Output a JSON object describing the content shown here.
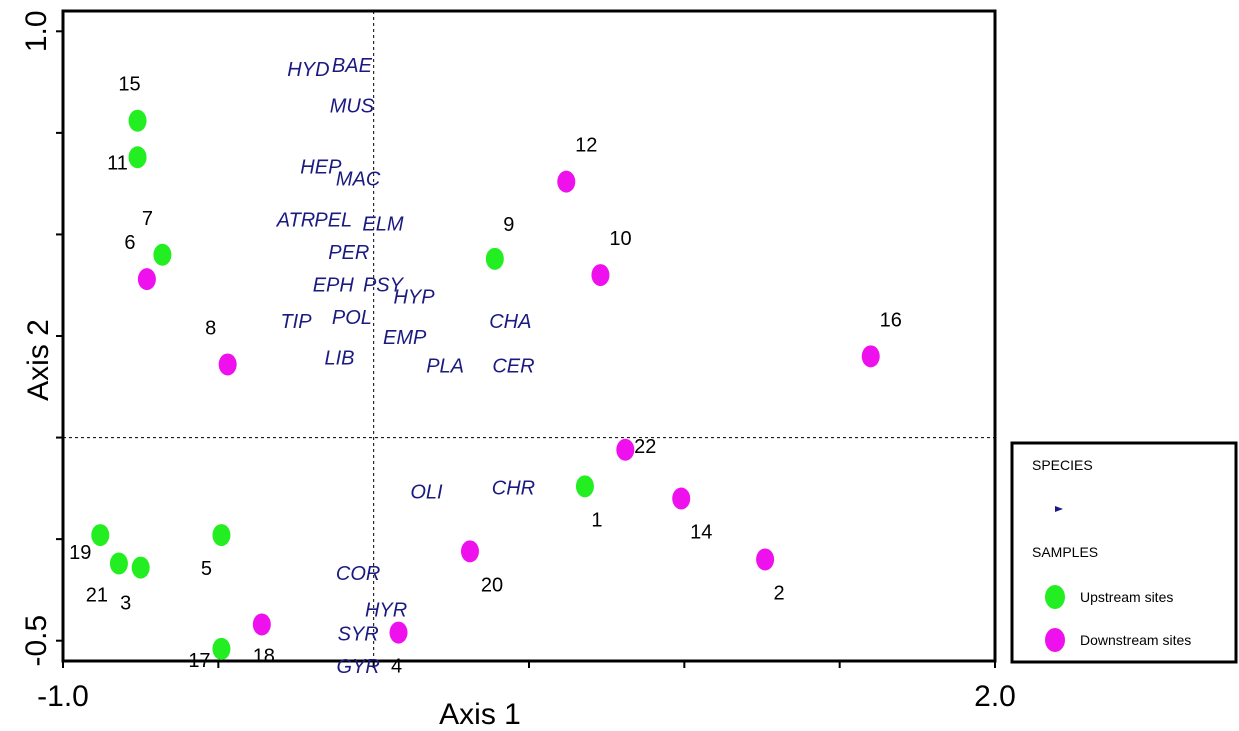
{
  "chart_data": {
    "type": "scatter",
    "xlabel": "Axis 1",
    "ylabel": "Axis 2",
    "xlim": [
      -1.0,
      2.0
    ],
    "ylim": [
      -0.55,
      1.05
    ],
    "x_ticks_labeled": [
      {
        "value": -1.0,
        "label": "-1.0"
      },
      {
        "value": 2.0,
        "label": "2.0"
      }
    ],
    "y_ticks_labeled": [
      {
        "value": 1.0,
        "label": "1.0"
      },
      {
        "value": -0.5,
        "label": "-0.5"
      }
    ],
    "x_ticks": [
      -1.0,
      -0.5,
      0.0,
      0.5,
      1.0,
      1.5,
      2.0
    ],
    "y_ticks": [
      1.0,
      0.75,
      0.5,
      0.25,
      0.0,
      -0.25,
      -0.5
    ],
    "reference_lines": {
      "x": 0.0,
      "y": 0.0
    },
    "colors": {
      "upstream": "#22ee22",
      "downstream": "#ee11ee",
      "species": "#1a1a80"
    },
    "species": [
      {
        "label": "HYD",
        "x": -0.21,
        "y": 0.89
      },
      {
        "label": "BAE",
        "x": -0.07,
        "y": 0.9
      },
      {
        "label": "MUS",
        "x": -0.07,
        "y": 0.8
      },
      {
        "label": "HEP",
        "x": -0.17,
        "y": 0.65
      },
      {
        "label": "MAC",
        "x": -0.05,
        "y": 0.62
      },
      {
        "label": "ATR",
        "x": -0.25,
        "y": 0.52
      },
      {
        "label": "PEL",
        "x": -0.13,
        "y": 0.52
      },
      {
        "label": "ELM",
        "x": 0.03,
        "y": 0.51
      },
      {
        "label": "PER",
        "x": -0.08,
        "y": 0.44
      },
      {
        "label": "EPH",
        "x": -0.13,
        "y": 0.36
      },
      {
        "label": "PSY",
        "x": 0.03,
        "y": 0.36
      },
      {
        "label": "HYP",
        "x": 0.13,
        "y": 0.33
      },
      {
        "label": "TIP",
        "x": -0.25,
        "y": 0.27
      },
      {
        "label": "POL",
        "x": -0.07,
        "y": 0.28
      },
      {
        "label": "EMP",
        "x": 0.1,
        "y": 0.23
      },
      {
        "label": "CHA",
        "x": 0.44,
        "y": 0.27
      },
      {
        "label": "LIB",
        "x": -0.11,
        "y": 0.18
      },
      {
        "label": "PLA",
        "x": 0.23,
        "y": 0.16
      },
      {
        "label": "CER",
        "x": 0.45,
        "y": 0.16
      },
      {
        "label": "OLI",
        "x": 0.17,
        "y": -0.15
      },
      {
        "label": "CHR",
        "x": 0.45,
        "y": -0.14
      },
      {
        "label": "COR",
        "x": -0.05,
        "y": -0.35
      },
      {
        "label": "HYR",
        "x": 0.04,
        "y": -0.44
      },
      {
        "label": "SYR",
        "x": -0.05,
        "y": -0.5
      },
      {
        "label": "GYR",
        "x": -0.05,
        "y": -0.58
      }
    ],
    "series": [
      {
        "name": "Upstream sites",
        "points": [
          {
            "label": "15",
            "x": -0.76,
            "y": 0.78
          },
          {
            "label": "11",
            "x": -0.76,
            "y": 0.69
          },
          {
            "label": "7",
            "x": -0.68,
            "y": 0.45
          },
          {
            "label": "9",
            "x": 0.39,
            "y": 0.44
          },
          {
            "label": "1",
            "x": 0.68,
            "y": -0.12
          },
          {
            "label": "19",
            "x": -0.88,
            "y": -0.24
          },
          {
            "label": "21",
            "x": -0.82,
            "y": -0.31
          },
          {
            "label": "3",
            "x": -0.75,
            "y": -0.32
          },
          {
            "label": "5",
            "x": -0.49,
            "y": -0.24
          },
          {
            "label": "17",
            "x": -0.49,
            "y": -0.52
          }
        ]
      },
      {
        "name": "Downstream sites",
        "points": [
          {
            "label": "6",
            "x": -0.73,
            "y": 0.39
          },
          {
            "label": "8",
            "x": -0.47,
            "y": 0.18
          },
          {
            "label": "12",
            "x": 0.62,
            "y": 0.63
          },
          {
            "label": "10",
            "x": 0.73,
            "y": 0.4
          },
          {
            "label": "16",
            "x": 1.6,
            "y": 0.2
          },
          {
            "label": "22",
            "x": 0.81,
            "y": -0.03
          },
          {
            "label": "14",
            "x": 0.99,
            "y": -0.15
          },
          {
            "label": "2",
            "x": 1.26,
            "y": -0.3
          },
          {
            "label": "20",
            "x": 0.31,
            "y": -0.28
          },
          {
            "label": "18",
            "x": -0.36,
            "y": -0.46
          },
          {
            "label": "4",
            "x": 0.08,
            "y": -0.48
          }
        ]
      }
    ],
    "legend": {
      "position": "bottom-right, outside plot",
      "species_heading": "SPECIES",
      "samples_heading": "SAMPLES",
      "upstream_label": "Upstream sites",
      "downstream_label": "Downstream sites"
    }
  }
}
